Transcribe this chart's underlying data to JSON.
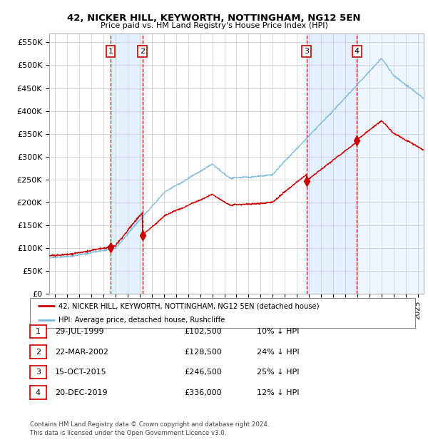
{
  "title": "42, NICKER HILL, KEYWORTH, NOTTINGHAM, NG12 5EN",
  "subtitle": "Price paid vs. HM Land Registry's House Price Index (HPI)",
  "ylim": [
    0,
    570000
  ],
  "yticks": [
    0,
    50000,
    100000,
    150000,
    200000,
    250000,
    300000,
    350000,
    400000,
    450000,
    500000,
    550000
  ],
  "xlim_start": 1994.5,
  "xlim_end": 2025.5,
  "legend_line1": "42, NICKER HILL, KEYWORTH, NOTTINGHAM, NG12 5EN (detached house)",
  "legend_line2": "HPI: Average price, detached house, Rushcliffe",
  "footer": "Contains HM Land Registry data © Crown copyright and database right 2024.\nThis data is licensed under the Open Government Licence v3.0.",
  "transactions": [
    {
      "num": 1,
      "date": "29-JUL-1999",
      "price": 102500,
      "x": 1999.57,
      "pct": "10%",
      "dir": "↓"
    },
    {
      "num": 2,
      "date": "22-MAR-2002",
      "price": 128500,
      "x": 2002.22,
      "pct": "24%",
      "dir": "↓"
    },
    {
      "num": 3,
      "date": "15-OCT-2015",
      "price": 246500,
      "x": 2015.79,
      "pct": "25%",
      "dir": "↓"
    },
    {
      "num": 4,
      "date": "20-DEC-2019",
      "price": 336000,
      "x": 2019.97,
      "pct": "12%",
      "dir": "↓"
    }
  ],
  "hpi_color": "#7ab8d9",
  "price_color": "#cc0000",
  "shade_color": "#ddeeff",
  "vline_color": "#cc0000",
  "grid_color": "#cccccc",
  "background_color": "#ffffff",
  "number_box_color": "#cc0000"
}
